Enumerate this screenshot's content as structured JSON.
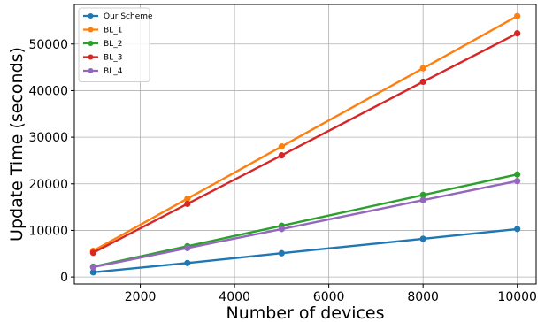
{
  "chart_data": {
    "type": "line",
    "title": "",
    "xlabel": "Number of devices",
    "ylabel": "Update Time (seconds)",
    "x": [
      1000,
      3000,
      5000,
      8000,
      10000
    ],
    "xlim": [
      600,
      10400
    ],
    "ylim": [
      -1500,
      58500
    ],
    "xticks": [
      2000,
      4000,
      6000,
      8000,
      10000
    ],
    "yticks": [
      0,
      10000,
      20000,
      30000,
      40000,
      50000
    ],
    "grid": true,
    "legend_position": "top-left",
    "series": [
      {
        "name": "Our Scheme",
        "color": "#1f77b4",
        "values": [
          1000,
          3000,
          5100,
          8200,
          10300
        ]
      },
      {
        "name": "BL_1",
        "color": "#ff7f0e",
        "values": [
          5600,
          16800,
          28000,
          44800,
          56000
        ]
      },
      {
        "name": "BL_2",
        "color": "#2ca02c",
        "values": [
          2200,
          6600,
          11000,
          17600,
          22000
        ]
      },
      {
        "name": "BL_3",
        "color": "#d62728",
        "values": [
          5200,
          15700,
          26100,
          41900,
          52300
        ]
      },
      {
        "name": "BL_4",
        "color": "#9467bd",
        "values": [
          2100,
          6200,
          10300,
          16500,
          20600
        ]
      }
    ]
  }
}
